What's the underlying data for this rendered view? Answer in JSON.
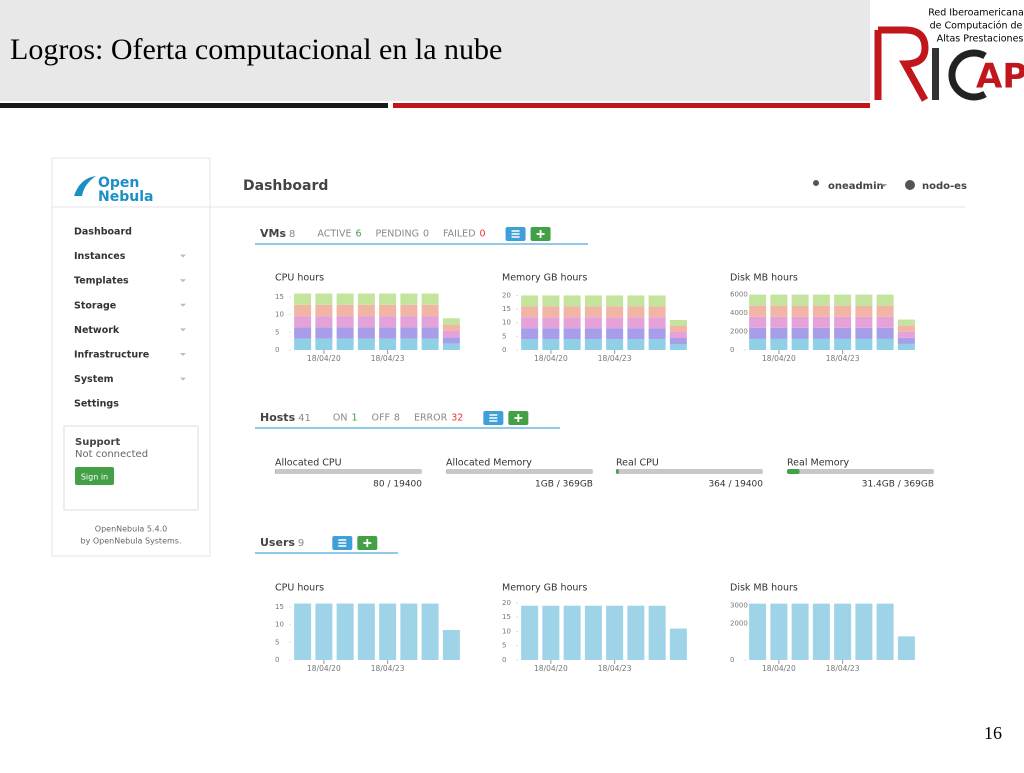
{
  "header": {
    "title": "Logros: Oferta computacional en la nube",
    "page_number": "16"
  },
  "logo": {
    "lines": [
      "Red Iberoamericana",
      "de Computación de",
      "Altas Prestaciones"
    ],
    "mark": "AP"
  },
  "app": {
    "brand": [
      "Open",
      "Nebula"
    ],
    "page_title": "Dashboard",
    "user": "oneadmin",
    "zone": "nodo-es",
    "menu": [
      "Dashboard",
      "Instances",
      "Templates",
      "Storage",
      "Network",
      "Infrastructure",
      "System",
      "Settings"
    ],
    "support": {
      "title": "Support",
      "status": "Not connected",
      "button": "Sign in"
    },
    "footer": [
      "OpenNebula 5.4.0",
      "by OpenNebula Systems."
    ]
  },
  "vms": {
    "title": "VMs",
    "total": 8,
    "states": [
      {
        "label": "ACTIVE",
        "value": 6,
        "color": "#43a047"
      },
      {
        "label": "PENDING",
        "value": 0,
        "color": "#888888"
      },
      {
        "label": "FAILED",
        "value": 0,
        "color": "#e53935"
      }
    ],
    "charts": [
      {
        "title": "CPU hours",
        "ylim": [
          0,
          17
        ],
        "yticks": [
          0,
          5,
          10,
          15
        ],
        "xticks": [
          "18/04/20",
          "18/04/23"
        ],
        "series": [
          {
            "color": "#8fd0e6",
            "values": [
              3.2,
              3.2,
              3.2,
              3.2,
              3.2,
              3.2,
              3.2,
              1.8
            ]
          },
          {
            "color": "#a79de8",
            "values": [
              3.2,
              3.2,
              3.2,
              3.2,
              3.2,
              3.2,
              3.2,
              1.8
            ]
          },
          {
            "color": "#e4a2d9",
            "values": [
              3.2,
              3.2,
              3.2,
              3.2,
              3.2,
              3.2,
              3.2,
              1.8
            ]
          },
          {
            "color": "#f2b4a4",
            "values": [
              3.2,
              3.2,
              3.2,
              3.2,
              3.2,
              3.2,
              3.2,
              1.8
            ]
          },
          {
            "color": "#c4e39c",
            "values": [
              3.2,
              3.2,
              3.2,
              3.2,
              3.2,
              3.2,
              3.2,
              1.8
            ]
          }
        ]
      },
      {
        "title": "Memory GB hours",
        "ylim": [
          0,
          22
        ],
        "yticks": [
          0,
          5,
          10,
          15,
          20
        ],
        "xticks": [
          "18/04/20",
          "18/04/23"
        ],
        "series": [
          {
            "color": "#8fd0e6",
            "values": [
              4,
              4,
              4,
              4,
              4,
              4,
              4,
              2.2
            ]
          },
          {
            "color": "#a79de8",
            "values": [
              4,
              4,
              4,
              4,
              4,
              4,
              4,
              2.2
            ]
          },
          {
            "color": "#e4a2d9",
            "values": [
              4,
              4,
              4,
              4,
              4,
              4,
              4,
              2.2
            ]
          },
          {
            "color": "#f2b4a4",
            "values": [
              4,
              4,
              4,
              4,
              4,
              4,
              4,
              2.2
            ]
          },
          {
            "color": "#c4e39c",
            "values": [
              4,
              4,
              4,
              4,
              4,
              4,
              4,
              2.2
            ]
          }
        ]
      },
      {
        "title": "Disk MB hours",
        "ylim": [
          0,
          6500
        ],
        "yticks": [
          0,
          2000,
          4000,
          6000
        ],
        "xticks": [
          "18/04/20",
          "18/04/23"
        ],
        "series": [
          {
            "color": "#8fd0e6",
            "values": [
              1200,
              1200,
              1200,
              1200,
              1200,
              1200,
              1200,
              660
            ]
          },
          {
            "color": "#a79de8",
            "values": [
              1200,
              1200,
              1200,
              1200,
              1200,
              1200,
              1200,
              660
            ]
          },
          {
            "color": "#e4a2d9",
            "values": [
              1200,
              1200,
              1200,
              1200,
              1200,
              1200,
              1200,
              660
            ]
          },
          {
            "color": "#f2b4a4",
            "values": [
              1200,
              1200,
              1200,
              1200,
              1200,
              1200,
              1200,
              660
            ]
          },
          {
            "color": "#c4e39c",
            "values": [
              1200,
              1200,
              1200,
              1200,
              1200,
              1200,
              1200,
              660
            ]
          }
        ]
      }
    ]
  },
  "hosts": {
    "title": "Hosts",
    "total": 41,
    "states": [
      {
        "label": "ON",
        "value": 1,
        "color": "#43a047"
      },
      {
        "label": "OFF",
        "value": 8,
        "color": "#888888"
      },
      {
        "label": "ERROR",
        "value": 32,
        "color": "#e53935"
      }
    ],
    "meters": [
      {
        "label": "Allocated CPU",
        "used": 80,
        "total": 19400,
        "text": "80 / 19400",
        "color": "#9e9e9e"
      },
      {
        "label": "Allocated Memory",
        "used": 1,
        "total": 369,
        "text": "1GB / 369GB",
        "color": "#9e9e9e"
      },
      {
        "label": "Real CPU",
        "used": 364,
        "total": 19400,
        "text": "364 / 19400",
        "color": "#43a047"
      },
      {
        "label": "Real Memory",
        "used": 31.4,
        "total": 369,
        "text": "31.4GB / 369GB",
        "color": "#43a047"
      }
    ]
  },
  "users": {
    "title": "Users",
    "total": 9,
    "charts": [
      {
        "title": "CPU hours",
        "ylim": [
          0,
          17
        ],
        "yticks": [
          0,
          5,
          10,
          15
        ],
        "xticks": [
          "18/04/20",
          "18/04/23"
        ],
        "series": [
          {
            "color": "#9fd4e8",
            "values": [
              16,
              16,
              16,
              16,
              16,
              16,
              16,
              8.5
            ]
          }
        ]
      },
      {
        "title": "Memory GB hours",
        "ylim": [
          0,
          21
        ],
        "yticks": [
          0,
          5,
          10,
          15,
          20
        ],
        "xticks": [
          "18/04/20",
          "18/04/23"
        ],
        "series": [
          {
            "color": "#9fd4e8",
            "values": [
              19,
              19,
              19,
              19,
              19,
              19,
              19,
              11
            ]
          }
        ]
      },
      {
        "title": "Disk MB hours",
        "ylim": [
          0,
          3300
        ],
        "yticks": [
          0,
          2000,
          3000
        ],
        "xticks": [
          "18/04/20",
          "18/04/23"
        ],
        "series": [
          {
            "color": "#9fd4e8",
            "values": [
              3100,
              3100,
              3100,
              3100,
              3100,
              3100,
              3100,
              1300
            ]
          }
        ]
      }
    ]
  }
}
